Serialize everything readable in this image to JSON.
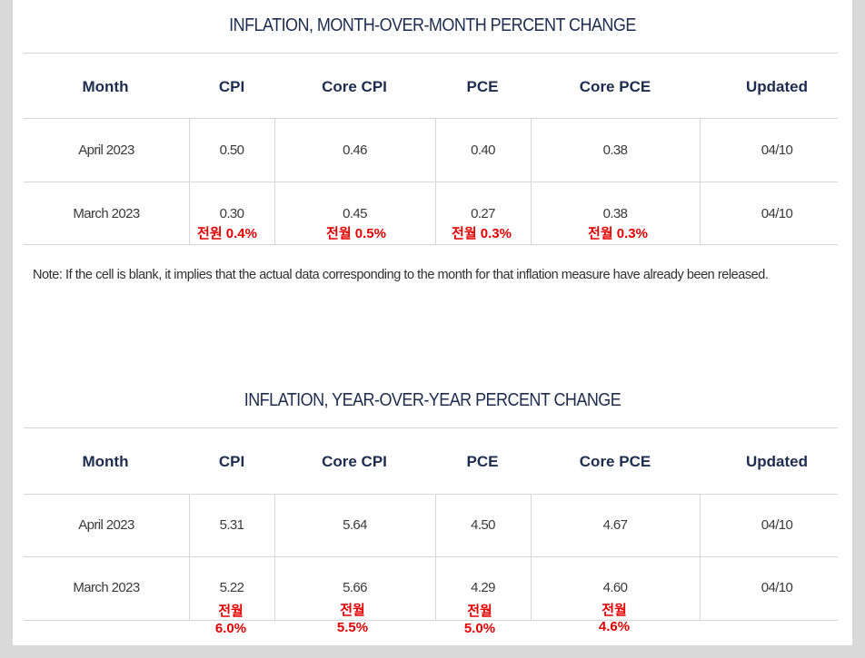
{
  "mom": {
    "title": "INFLATION, MONTH-OVER-MONTH PERCENT CHANGE",
    "headers": [
      "Month",
      "CPI",
      "Core CPI",
      "PCE",
      "Core PCE",
      "Updated"
    ],
    "rows": [
      [
        "April 2023",
        "0.50",
        "0.46",
        "0.40",
        "0.38",
        "04/10"
      ],
      [
        "March 2023",
        "0.30",
        "0.45",
        "0.27",
        "0.38",
        "04/10"
      ]
    ],
    "annotations": [
      "전원 0.4%",
      "전월 0.5%",
      "전월 0.3%",
      "전월 0.3%"
    ]
  },
  "note": "Note: If the cell is blank, it implies that the actual data corresponding to the month for that inflation measure have already been released.",
  "yoy": {
    "title": "INFLATION, YEAR-OVER-YEAR PERCENT CHANGE",
    "headers": [
      "Month",
      "CPI",
      "Core CPI",
      "PCE",
      "Core PCE",
      "Updated"
    ],
    "rows": [
      [
        "April 2023",
        "5.31",
        "5.64",
        "4.50",
        "4.67",
        "04/10"
      ],
      [
        "March 2023",
        "5.22",
        "5.66",
        "4.29",
        "4.60",
        "04/10"
      ]
    ],
    "annotations": [
      {
        "line1": "전월",
        "line2": "6.0%"
      },
      {
        "line1": "전월",
        "line2": "5.5%"
      },
      {
        "line1": "전월",
        "line2": "5.0%"
      },
      {
        "line1": "전월",
        "line2": "4.6%"
      }
    ]
  },
  "colors": {
    "title": "#1d2d4f",
    "annotation": "#e30000",
    "rule": "#d6d6d6"
  }
}
